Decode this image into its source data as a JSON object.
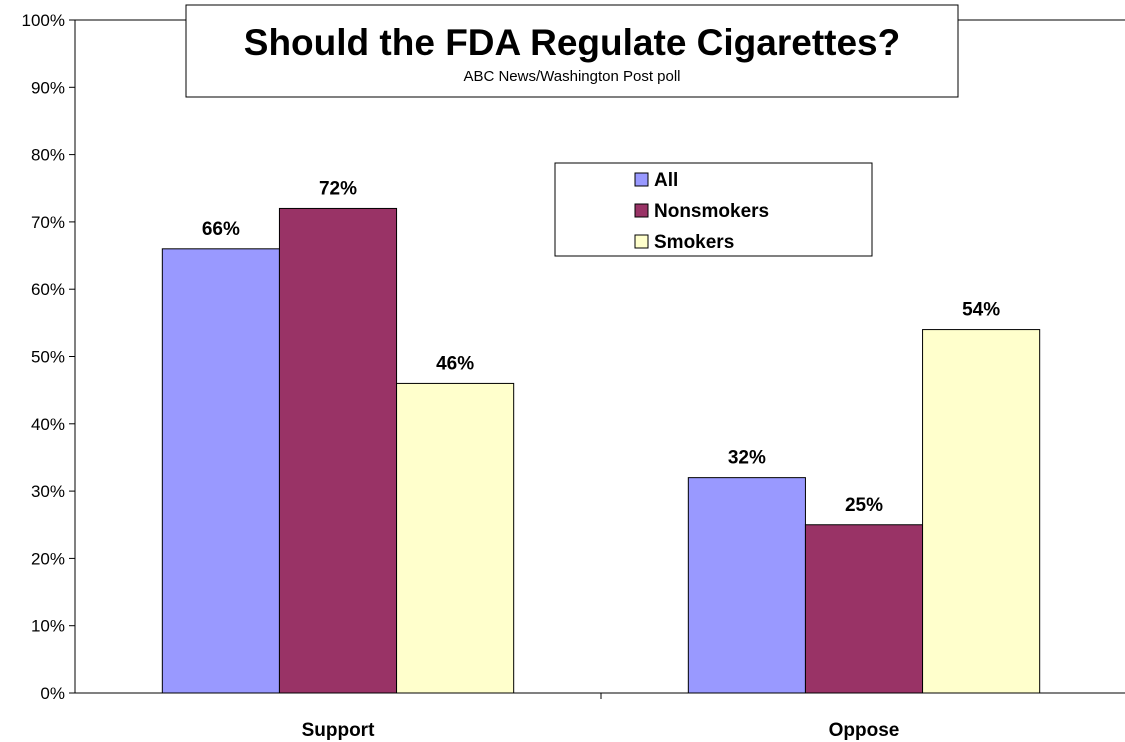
{
  "chart_data": {
    "type": "bar",
    "title": "Should the FDA Regulate Cigarettes?",
    "subtitle": "ABC News/Washington Post poll",
    "categories": [
      "Support",
      "Oppose"
    ],
    "series": [
      {
        "name": "All",
        "values": [
          66,
          32
        ],
        "color": "#9999ff"
      },
      {
        "name": "Nonsmokers",
        "values": [
          72,
          25
        ],
        "color": "#993366"
      },
      {
        "name": "Smokers",
        "values": [
          46,
          54
        ],
        "color": "#ffffcc"
      }
    ],
    "data_labels": [
      [
        "66%",
        "32%"
      ],
      [
        "72%",
        "25%"
      ],
      [
        "46%",
        "54%"
      ]
    ],
    "ylim": [
      0,
      100
    ],
    "yticks": [
      0,
      10,
      20,
      30,
      40,
      50,
      60,
      70,
      80,
      90,
      100
    ],
    "ytick_labels": [
      "0%",
      "10%",
      "20%",
      "30%",
      "40%",
      "50%",
      "60%",
      "70%",
      "80%",
      "90%",
      "100%"
    ],
    "xlabel": "",
    "ylabel": "",
    "grid": false,
    "legend_position": "top-right"
  }
}
